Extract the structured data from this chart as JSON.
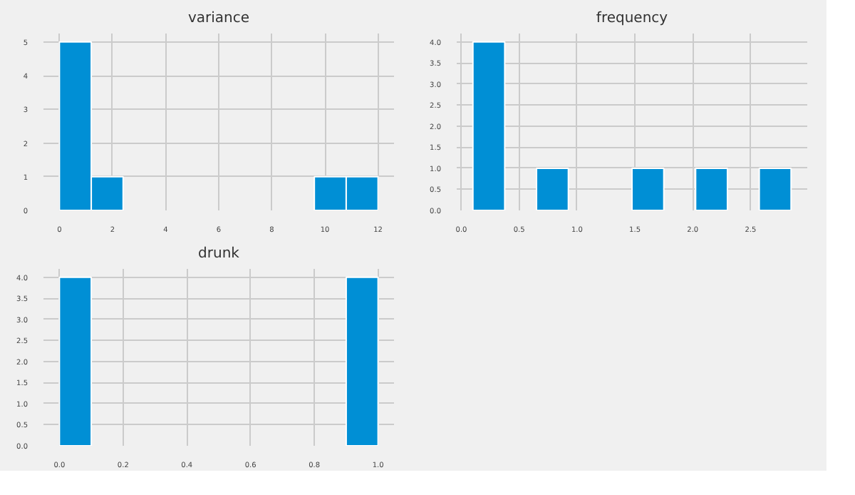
{
  "chart_data": [
    {
      "type": "histogram",
      "title": "variance",
      "bins": [
        0,
        1.2,
        2.4,
        3.6,
        4.8,
        6.0,
        7.2,
        8.4,
        9.6,
        10.8,
        12.0
      ],
      "values": [
        5,
        1,
        0,
        0,
        0,
        0,
        0,
        0,
        1,
        1
      ],
      "color": "#008fd5",
      "xlim": [
        -0.6,
        12.6
      ],
      "xticks": [
        0,
        2,
        4,
        6,
        8,
        10,
        12
      ],
      "ylim": [
        0,
        5.25
      ],
      "yticks": [
        0,
        1,
        2,
        3,
        4,
        5
      ],
      "grid": true
    },
    {
      "type": "histogram",
      "title": "frequency",
      "bins": [
        0.1,
        0.375,
        0.65,
        0.925,
        1.2,
        1.475,
        1.75,
        2.025,
        2.3,
        2.575,
        2.85
      ],
      "values": [
        4,
        0,
        1,
        0,
        0,
        1,
        0,
        1,
        0,
        1
      ],
      "color": "#008fd5",
      "xlim": [
        -0.04,
        2.99
      ],
      "xticks": [
        {
          "value": 0,
          "label": "0.0"
        },
        0.5,
        {
          "value": 1,
          "label": "1.0"
        },
        1.5,
        {
          "value": 2,
          "label": "2.0"
        },
        2.5
      ],
      "ylim": [
        0,
        4.2
      ],
      "yticks": [
        {
          "value": 0,
          "label": "0.0"
        },
        0.5,
        {
          "value": 1,
          "label": "1.0"
        },
        1.5,
        {
          "value": 2,
          "label": "2.0"
        },
        2.5,
        {
          "value": 3,
          "label": "3.0"
        },
        3.5,
        {
          "value": 4,
          "label": "4.0"
        }
      ],
      "grid": true
    },
    {
      "type": "histogram",
      "title": "drunk",
      "bins": [
        0,
        0.1,
        0.2,
        0.3,
        0.4,
        0.5,
        0.6,
        0.7,
        0.8,
        0.9,
        1.0
      ],
      "values": [
        4,
        0,
        0,
        0,
        0,
        0,
        0,
        0,
        0,
        4
      ],
      "color": "#008fd5",
      "xlim": [
        -0.05,
        1.05
      ],
      "xticks": [
        {
          "value": 0,
          "label": "0.0"
        },
        0.2,
        0.4,
        0.6,
        0.8,
        {
          "value": 1,
          "label": "1.0"
        }
      ],
      "ylim": [
        0,
        4.2
      ],
      "yticks": [
        {
          "value": 0,
          "label": "0.0"
        },
        0.5,
        {
          "value": 1,
          "label": "1.0"
        },
        1.5,
        {
          "value": 2,
          "label": "2.0"
        },
        2.5,
        {
          "value": 3,
          "label": "3.0"
        },
        3.5,
        {
          "value": 4,
          "label": "4.0"
        }
      ],
      "grid": true
    }
  ]
}
